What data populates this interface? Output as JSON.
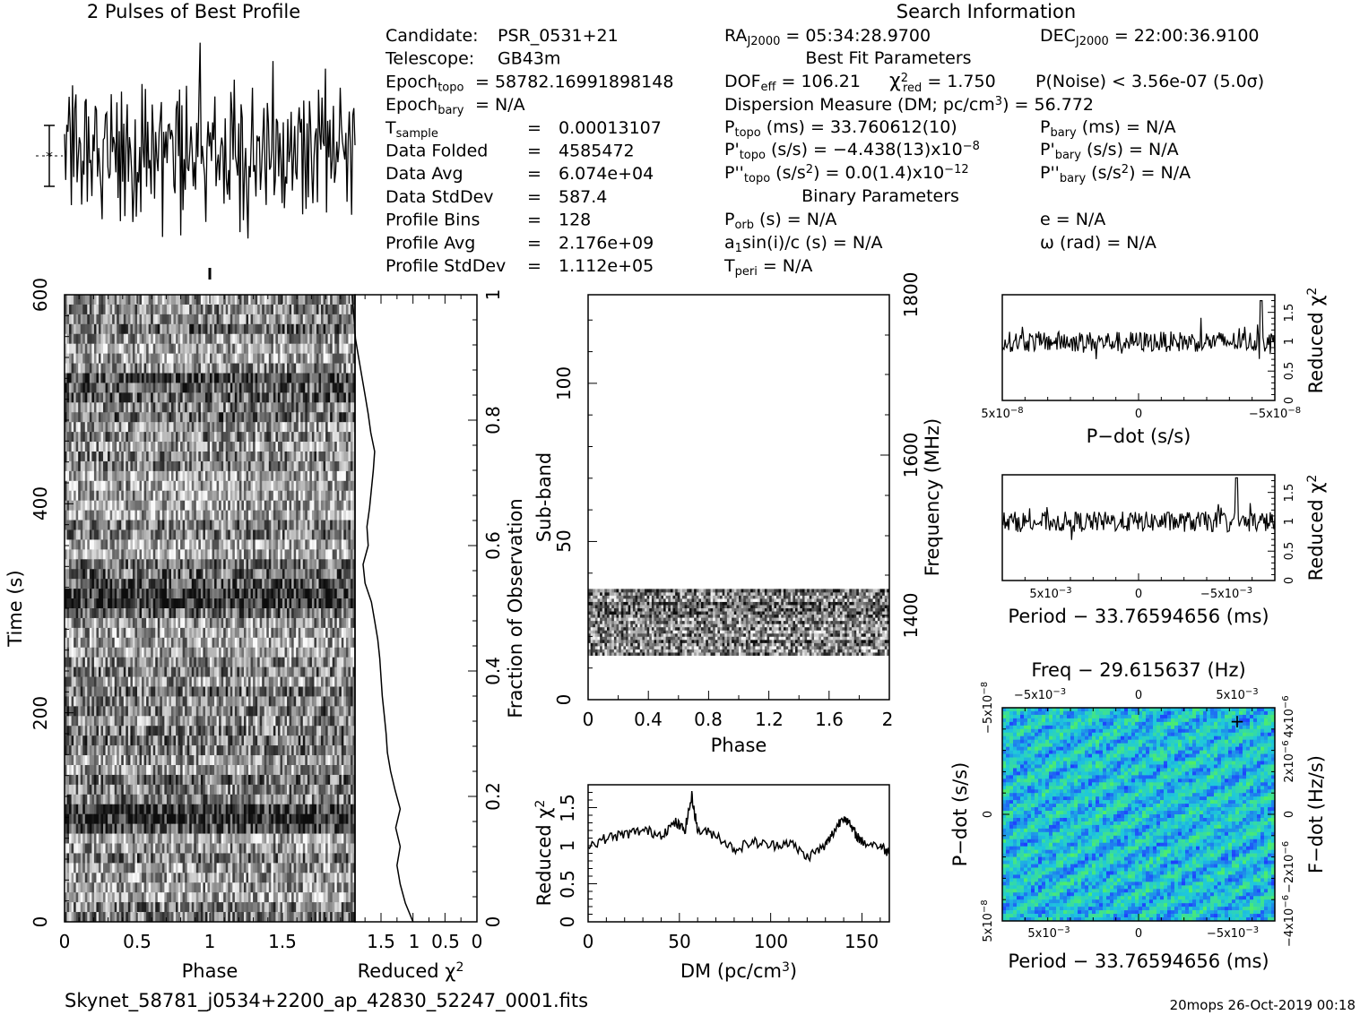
{
  "title": "2 Pulses of Best Profile",
  "search_header": "Search Information",
  "footer_file": "Skynet_58781_j0534+2200_ap_42830_52247_0001.fits",
  "footer_stamp": "20mops 26-Oct-2019 00:18",
  "info_left": [
    {
      "label": "Candidate:",
      "value": "PSR_0531+21"
    },
    {
      "label": "Telescope:",
      "value": "GB43m"
    },
    {
      "label": "Epoch",
      "sub": "topo",
      "value": "= 58782.16991898148"
    },
    {
      "label": "Epoch",
      "sub": "bary",
      "value": "= N/A"
    },
    {
      "label": "T",
      "sub": "sample",
      "eq": "=",
      "value": "0.00013107"
    },
    {
      "label": "Data Folded",
      "eq": "=",
      "value": "4585472"
    },
    {
      "label": "Data Avg",
      "eq": "=",
      "value": "6.074e+04"
    },
    {
      "label": "Data StdDev",
      "eq": "=",
      "value": "587.4"
    },
    {
      "label": "Profile Bins",
      "eq": "=",
      "value": "128"
    },
    {
      "label": "Profile Avg",
      "eq": "=",
      "value": "2.176e+09"
    },
    {
      "label": "Profile StdDev",
      "eq": "=",
      "value": "1.112e+05"
    }
  ],
  "info_right": {
    "ra": "RA",
    "ra_sub": "J2000",
    "ra_val": "= 05:34:28.9700",
    "dec": "DEC",
    "dec_sub": "J2000",
    "dec_val": "= 22:00:36.9100",
    "best_fit_header": "Best Fit Parameters",
    "dof": "DOF",
    "dof_sub": "eff",
    "dof_val": "= 106.21",
    "chi": "χ",
    "chi_sup": "2",
    "chi_sub": "red",
    "chi_val": "= 1.750",
    "pnoise": "P(Noise) < 3.56e-07  (5.0σ)",
    "dm_line": "Dispersion Measure (DM; pc/cm",
    "dm_sup": "3",
    "dm_end": ") = 56.772",
    "ptopo": "P",
    "ptopo_sub": "topo",
    "ptopo_val": "(ms) =  33.760612(10)",
    "pbary": "P",
    "pbary_sub": "bary",
    "pbary_val": "(ms) = N/A",
    "pdtopo": "P'",
    "pdtopo_sub": "topo",
    "pdtopo_val": "(s/s) = −4.438(13)x10",
    "pdtopo_exp": "−8",
    "pdbary": "P'",
    "pdbary_sub": "bary",
    "pdbary_val": "(s/s) = N/A",
    "pddtopo": "P''",
    "pddtopo_sub": "topo",
    "pddtopo_val": "(s/s",
    "pddtopo_sup": "2",
    "pddtopo_val2": ") = 0.0(1.4)x10",
    "pddtopo_exp": "−12",
    "pddbary": "P''",
    "pddbary_sub": "bary",
    "pddbary_val": "(s/s",
    "pddbary_sup": "2",
    "pddbary_val2": ") = N/A",
    "binary_header": "Binary Parameters",
    "porb": "P",
    "porb_sub": "orb",
    "porb_val": "(s) = N/A",
    "ecc": "e = N/A",
    "asini": "a",
    "asini_sub": "1",
    "asini_val": "sin(i)/c (s) = N/A",
    "omega": "ω (rad) = N/A",
    "tperi": "T",
    "tperi_sub": "peri",
    "tperi_val": "= N/A"
  },
  "chart_data": [
    {
      "type": "line",
      "title": "2 Pulses of Best Profile",
      "xlabel": "",
      "ylabel": "",
      "xlim": [
        0,
        2
      ],
      "series": [
        {
          "values": [
            0.3,
            -0.2,
            0.9,
            -1.4,
            2.1,
            0.4,
            -0.8,
            1.6,
            -2.2,
            0.7,
            1.9,
            -0.5,
            -1.7,
            2.6,
            0.2,
            -1.1,
            1.3,
            -2.5,
            0.8,
            1.1,
            -0.3,
            2.2,
            -1.6,
            0.5,
            -0.9,
            1.8,
            -2.0,
            0.6,
            2.8,
            -0.7,
            -1.3,
            1.0,
            0.1,
            -2.3,
            1.5,
            0.9,
            -0.4,
            2.4,
            -1.9,
            0.3,
            -0.6,
            1.2,
            -1.5,
            2.0,
            0.4,
            -2.7,
            1.7,
            -0.1,
            0.8,
            -1.2,
            2.3,
            -0.8,
            0.6,
            -1.8,
            1.4,
            3.2,
            -0.9,
            -1.4,
            0.7,
            1.6,
            -2.1,
            0.2,
            1.0,
            -0.5
          ]
        }
      ]
    },
    {
      "type": "heatmap",
      "xlabel": "Phase",
      "ylabel": "Time (s)",
      "xlim": [
        0,
        2
      ],
      "ylim": [
        0,
        600
      ],
      "x_ticks": [
        "0",
        "0.5",
        "1",
        "1.5"
      ],
      "y_ticks": [
        "0",
        "200",
        "400",
        "600"
      ],
      "rows": 64,
      "cols": 128,
      "dark_rows_at_time": [
        100,
        320,
        520
      ]
    },
    {
      "type": "line",
      "xlabel": "Reduced χ",
      "xlabel_sup": "2",
      "ylabel": "Fraction of Observation",
      "x_ticks": [
        "1.5",
        "1",
        "0.5",
        "0"
      ],
      "y_ticks": [
        "0",
        "0.2",
        "0.4",
        "0.6",
        "0.8",
        "1"
      ],
      "x": [
        1.0,
        1.12,
        1.2,
        1.25,
        1.2,
        1.27,
        1.2,
        1.28,
        1.35,
        1.4,
        1.42,
        1.45,
        1.48,
        1.5,
        1.52,
        1.55,
        1.6,
        1.65,
        1.75,
        1.78,
        1.7,
        1.72,
        1.68,
        1.65,
        1.62,
        1.6,
        1.66,
        1.7,
        1.75,
        1.8,
        1.85,
        1.9,
        1.92,
        1.95
      ],
      "y": [
        0.0,
        0.03,
        0.06,
        0.09,
        0.12,
        0.15,
        0.18,
        0.21,
        0.24,
        0.27,
        0.3,
        0.33,
        0.36,
        0.39,
        0.42,
        0.45,
        0.48,
        0.51,
        0.54,
        0.57,
        0.6,
        0.63,
        0.66,
        0.69,
        0.72,
        0.75,
        0.78,
        0.81,
        0.84,
        0.87,
        0.9,
        0.93,
        0.96,
        1.0
      ]
    },
    {
      "type": "heatmap",
      "xlabel": "Phase",
      "ylabel": "Sub-band",
      "y2label": "Frequency (MHz)",
      "xlim": [
        0,
        2
      ],
      "ylim": [
        0,
        128
      ],
      "x_ticks": [
        "0",
        "0.4",
        "0.8",
        "1.2",
        "1.6",
        "2"
      ],
      "y_ticks": [
        "0",
        "50",
        "100"
      ],
      "y2_ticks": [
        "1400",
        "1600",
        "1800"
      ],
      "active_subbands": [
        14,
        35
      ]
    },
    {
      "type": "line",
      "xlabel": "DM (pc/cm",
      "xlabel_sup": "3",
      "xlabel_end": ")",
      "ylabel": "Reduced χ",
      "ylabel_sup": "2",
      "xlim": [
        0,
        165
      ],
      "ylim": [
        0,
        1.8
      ],
      "x_ticks": [
        "0",
        "50",
        "100",
        "150"
      ],
      "y_ticks": [
        "0",
        "0.5",
        "1",
        "1.5"
      ],
      "x": [
        0,
        10,
        20,
        30,
        40,
        48,
        53,
        56.8,
        60,
        70,
        80,
        90,
        100,
        110,
        120,
        130,
        135,
        140,
        145,
        150,
        160,
        165
      ],
      "y": [
        1.0,
        1.1,
        1.15,
        1.2,
        1.15,
        1.3,
        1.2,
        1.65,
        1.2,
        1.15,
        0.95,
        1.05,
        1.0,
        1.05,
        0.85,
        1.0,
        1.2,
        1.4,
        1.2,
        1.05,
        1.0,
        0.9
      ]
    },
    {
      "type": "line",
      "xlabel": "P−dot (s/s)",
      "ylabel": "Reduced χ",
      "ylabel_sup": "2",
      "x_ticks": [
        "5x10",
        "0",
        "−5x10"
      ],
      "x_tick_exp": "−8",
      "y_ticks": [
        "0",
        "0.5",
        "1",
        "1.5"
      ],
      "ylim": [
        0,
        1.8
      ],
      "peak": 1.7
    },
    {
      "type": "line",
      "xlabel": "Period − 33.76594656 (ms)",
      "ylabel": "Reduced χ",
      "ylabel_sup": "2",
      "x_ticks": [
        "5x10",
        "0",
        "−5x10"
      ],
      "x_tick_exp": "−3",
      "y_ticks": [
        "0",
        "0.5",
        "1",
        "1.5"
      ],
      "ylim": [
        0,
        1.8
      ],
      "peak": 1.75
    },
    {
      "type": "heatmap",
      "title": "Freq − 29.615637 (Hz)",
      "xlabel": "Period − 33.76594656 (ms)",
      "ylabel": "P−dot (s/s)",
      "y2label": "F−dot (Hz/s)",
      "x_ticks": [
        "5x10",
        "0",
        "−5x10"
      ],
      "x_tick_exp": "−3",
      "x2_ticks": [
        "−5x10",
        "0",
        "5x10"
      ],
      "x2_tick_exp": "−3",
      "y_ticks": [
        "5x10",
        "0",
        "−5x10"
      ],
      "y_tick_exp": "−8",
      "y2_ticks": [
        "−4x10",
        "−2x10",
        "0",
        "2x10",
        "4x10"
      ],
      "y2_tick_exp": "−6",
      "colors": {
        "low": "#1e3cff",
        "mid": "#1ec8dc",
        "high": "#50f064"
      }
    }
  ]
}
